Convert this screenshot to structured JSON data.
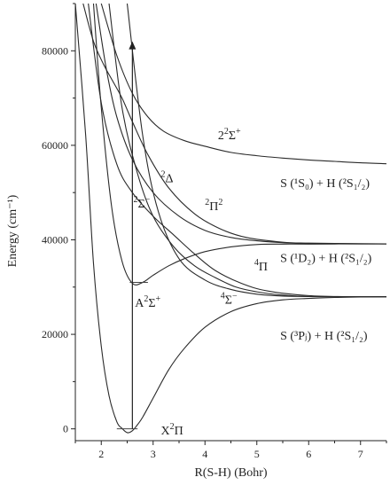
{
  "chart_data": {
    "type": "line",
    "xlabel": "R(S-H) (Bohr)",
    "ylabel": "Energy (cm⁻¹)",
    "xlim": [
      1.5,
      7.5
    ],
    "ylim": [
      -2500,
      90000
    ],
    "xticks": [
      2,
      3,
      4,
      5,
      6,
      7
    ],
    "yticks": [
      0,
      20000,
      40000,
      60000,
      80000
    ],
    "series": [
      {
        "name": "X²Π",
        "x": [
          1.5,
          1.7,
          1.85,
          2.0,
          2.15,
          2.3,
          2.4,
          2.5,
          2.6,
          2.7,
          2.8,
          3.0,
          3.3,
          3.6,
          4.0,
          4.5,
          5.0,
          5.5,
          6.0,
          6.5,
          7.0,
          7.5
        ],
        "y": [
          90000,
          62000,
          35000,
          17500,
          7000,
          1500,
          100,
          -800,
          -400,
          900,
          2500,
          6500,
          12500,
          17000,
          21500,
          24800,
          26500,
          27300,
          27600,
          27800,
          27900,
          27950
        ]
      },
      {
        "name": "A²Σ⁺",
        "x": [
          1.85,
          2.0,
          2.2,
          2.4,
          2.6,
          2.8,
          3.0,
          3.3,
          3.6,
          4.0,
          4.5,
          5.0,
          5.5,
          6.0,
          7.0,
          7.5
        ],
        "y": [
          90000,
          68000,
          47000,
          35500,
          30800,
          31000,
          32500,
          34500,
          36000,
          37500,
          38500,
          39000,
          39100,
          39100,
          39150,
          39150
        ]
      },
      {
        "name": "⁴Σ⁻",
        "x": [
          2.5,
          2.8,
          3.1,
          3.5,
          4.0,
          4.5,
          5.0,
          5.5,
          6.0,
          7.0,
          7.5
        ],
        "y": [
          90000,
          62000,
          46000,
          36000,
          31500,
          29500,
          28500,
          28100,
          28000,
          27950,
          27950
        ]
      },
      {
        "name": "⁴Π",
        "x": [
          2.15,
          2.4,
          2.7,
          3.0,
          3.4,
          3.8,
          4.2,
          4.6,
          5.0,
          5.5,
          6.0,
          7.0,
          7.5
        ],
        "y": [
          90000,
          68000,
          54000,
          45000,
          38500,
          34500,
          32000,
          30000,
          29000,
          28300,
          28000,
          27950,
          27950
        ]
      },
      {
        "name": "²Σ⁻",
        "x": [
          1.75,
          2.0,
          2.3,
          2.6,
          3.0,
          3.4,
          3.8,
          4.2,
          4.7,
          5.2,
          6.0,
          7.0,
          7.5
        ],
        "y": [
          90000,
          69000,
          56000,
          50000,
          45000,
          41000,
          37000,
          33500,
          30800,
          29200,
          28200,
          27950,
          27950
        ]
      },
      {
        "name": "²Π",
        "x": [
          1.9,
          2.1,
          2.3,
          2.6,
          3.0,
          3.5,
          4.0,
          4.5,
          5.0,
          5.5,
          6.0,
          7.0,
          7.5
        ],
        "y": [
          90000,
          76000,
          66000,
          57000,
          50000,
          45000,
          42000,
          40500,
          39800,
          39400,
          39200,
          39150,
          39150
        ]
      },
      {
        "name": "²Δ",
        "x": [
          1.65,
          1.85,
          2.05,
          2.2,
          2.4,
          2.6,
          2.9,
          3.3,
          3.8,
          4.3,
          4.8,
          5.5,
          6.0,
          7.0,
          7.5
        ],
        "y": [
          90000,
          82000,
          77000,
          74000,
          70000,
          65000,
          58000,
          51000,
          45500,
          42300,
          40500,
          39500,
          39300,
          39200,
          39150
        ]
      },
      {
        "name": "2²Σ⁺",
        "x": [
          2.0,
          2.3,
          2.6,
          2.9,
          3.2,
          3.6,
          4.0,
          4.5,
          5.0,
          5.5,
          6.0,
          6.5,
          7.0,
          7.5
        ],
        "y": [
          90000,
          79000,
          71000,
          66000,
          63000,
          61000,
          59800,
          58500,
          57800,
          57300,
          56900,
          56600,
          56300,
          56100
        ]
      }
    ],
    "excitation_arrow": {
      "x": 2.6,
      "y_from": 0,
      "y_to": 82000
    },
    "level_markers": [
      {
        "x_from": 2.3,
        "x_to": 2.7,
        "y": 0
      },
      {
        "x_from": 2.55,
        "x_to": 2.9,
        "y": 31000
      }
    ],
    "state_labels": [
      {
        "pre_sup": "",
        "base": "X",
        "mid_sup": "2",
        "rest": "Π",
        "post_sup": "",
        "x": 3.15,
        "y": -1200
      },
      {
        "pre_sup": "",
        "base": "A",
        "mid_sup": "2",
        "rest": "Σ",
        "post_sup": "+",
        "x": 2.65,
        "y": 25800
      },
      {
        "pre_sup": "4",
        "base": "Σ",
        "mid_sup": "",
        "rest": "",
        "post_sup": "−",
        "x": 4.3,
        "y": 26500
      },
      {
        "pre_sup": "4",
        "base": "Π",
        "mid_sup": "",
        "rest": "",
        "post_sup": "",
        "x": 4.95,
        "y": 33500
      },
      {
        "pre_sup": "2",
        "base": "Σ",
        "mid_sup": "",
        "rest": "",
        "post_sup": "−",
        "x": 2.62,
        "y": 46800
      },
      {
        "pre_sup": "2",
        "base": "Π",
        "mid_sup": "2",
        "rest": "",
        "post_sup": "",
        "x": 4.0,
        "y": 46300
      },
      {
        "pre_sup": "2",
        "base": "Δ",
        "mid_sup": "",
        "rest": "",
        "post_sup": "",
        "x": 3.15,
        "y": 52200
      },
      {
        "pre_sup": "",
        "base": "2",
        "mid_sup": "2",
        "rest": "Σ",
        "post_sup": "+",
        "x": 4.25,
        "y": 61300
      }
    ],
    "asymptote_labels": [
      {
        "text": "S (¹S₀) + H (²S₁/₂)",
        "x": 5.45,
        "y": 51200
      },
      {
        "text": "S (¹D₂) + H (²S₁/₂)",
        "x": 5.45,
        "y": 35300
      },
      {
        "text": "S (³Pⱼ) + H (²S₁/₂)",
        "x": 5.45,
        "y": 18900
      }
    ]
  }
}
